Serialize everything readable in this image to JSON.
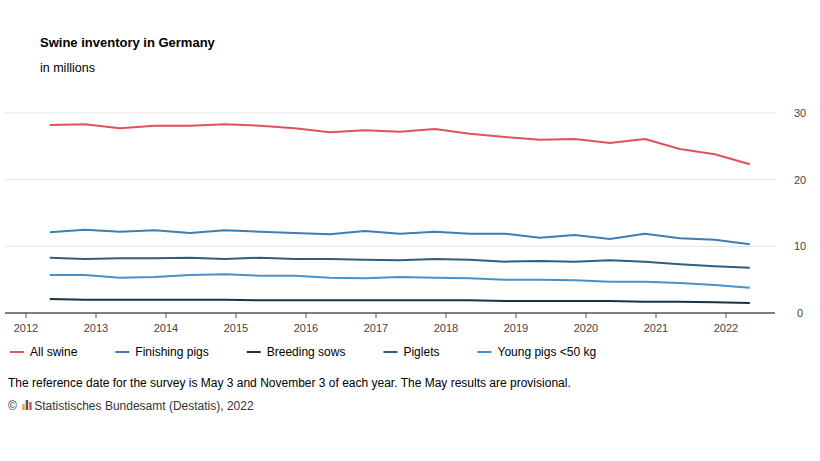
{
  "chart_data": {
    "type": "line",
    "title": "Swine inventory in Germany",
    "subtitle": "in millions",
    "note": "The reference date for the survey is May 3 and November 3 of each year. The May results are provisional.",
    "source": "© Statistisches Bundesamt (Destatis), 2022",
    "x": [
      2012.34,
      2012.84,
      2013.34,
      2013.84,
      2014.34,
      2014.84,
      2015.34,
      2015.84,
      2016.34,
      2016.84,
      2017.34,
      2017.84,
      2018.34,
      2018.84,
      2019.34,
      2019.84,
      2020.34,
      2020.84,
      2021.34,
      2021.84,
      2022.34
    ],
    "xlim": [
      2011.7,
      2022.7
    ],
    "xticks": [
      2012,
      2013,
      2014,
      2015,
      2016,
      2017,
      2018,
      2019,
      2020,
      2021,
      2022
    ],
    "ylim": [
      0,
      30
    ],
    "yticks": [
      0,
      10,
      20,
      30
    ],
    "grid": true,
    "legend": "bottom",
    "series": [
      {
        "name": "All swine",
        "color": "#e0525f",
        "values": [
          28.2,
          28.3,
          27.7,
          28.1,
          28.1,
          28.3,
          28.1,
          27.7,
          27.1,
          27.4,
          27.2,
          27.6,
          26.9,
          26.4,
          26.0,
          26.1,
          25.5,
          26.1,
          24.6,
          23.8,
          22.3
        ]
      },
      {
        "name": "Finishing pigs",
        "color": "#3d7fb5",
        "values": [
          12.1,
          12.5,
          12.2,
          12.4,
          12.0,
          12.4,
          12.2,
          12.0,
          11.8,
          12.3,
          11.9,
          12.2,
          11.9,
          11.9,
          11.3,
          11.7,
          11.1,
          11.9,
          11.2,
          11.0,
          10.3
        ]
      },
      {
        "name": "Breeding sows",
        "color": "#1a3344",
        "values": [
          2.1,
          2.0,
          2.0,
          2.0,
          2.0,
          2.0,
          1.9,
          1.9,
          1.9,
          1.9,
          1.9,
          1.9,
          1.9,
          1.8,
          1.8,
          1.8,
          1.8,
          1.7,
          1.7,
          1.6,
          1.5
        ]
      },
      {
        "name": "Piglets",
        "color": "#2d5f82",
        "values": [
          8.3,
          8.1,
          8.2,
          8.2,
          8.3,
          8.1,
          8.3,
          8.1,
          8.1,
          8.0,
          7.9,
          8.1,
          8.0,
          7.7,
          7.8,
          7.7,
          7.9,
          7.7,
          7.3,
          7.0,
          6.8
        ]
      },
      {
        "name": "Young pigs <50 kg",
        "color": "#4a90c8",
        "values": [
          5.7,
          5.7,
          5.3,
          5.4,
          5.7,
          5.8,
          5.6,
          5.6,
          5.3,
          5.2,
          5.4,
          5.3,
          5.2,
          5.0,
          5.0,
          4.9,
          4.7,
          4.7,
          4.5,
          4.2,
          3.8
        ]
      }
    ]
  }
}
